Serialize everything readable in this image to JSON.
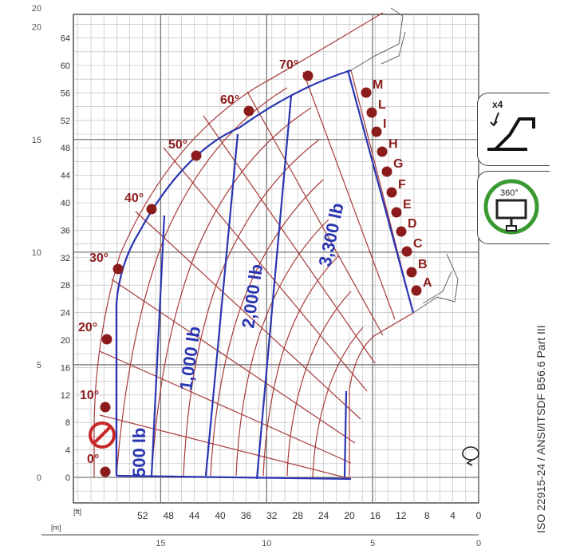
{
  "axes": {
    "ft_unit": "[ft]",
    "m_unit": "[m]",
    "y_ft": [
      "0",
      "4",
      "8",
      "12",
      "16",
      "20",
      "24",
      "28",
      "32",
      "36",
      "40",
      "44",
      "48",
      "52",
      "56",
      "60",
      "64"
    ],
    "y_m": [
      "0",
      "5",
      "10",
      "15",
      "20"
    ],
    "x_ft": [
      "52",
      "48",
      "44",
      "40",
      "36",
      "32",
      "28",
      "24",
      "20",
      "16",
      "12",
      "8",
      "4",
      "0"
    ],
    "x_m": [
      "15",
      "10",
      "5",
      "0"
    ]
  },
  "angles": [
    "0°",
    "10°",
    "20°",
    "30°",
    "40°",
    "50°",
    "60°",
    "70°"
  ],
  "extensions": [
    "A",
    "B",
    "C",
    "D",
    "E",
    "F",
    "G",
    "H",
    "I",
    "L",
    "M"
  ],
  "loads": [
    "500 lb",
    "1,000 lb",
    "2,000 lb",
    "3,300 lb"
  ],
  "badges": {
    "outrigger_count": "x4",
    "rotation_label": "360°"
  },
  "standard": "ISO 22915-24  /  ANSI/ITSDF B56.6 Part III",
  "colors": {
    "zone_outline": "#a83a3a",
    "load_lines": "#2a35b0",
    "dots": "#8c1c1c",
    "grid": "#8a8a8a",
    "badge_ring": "#3a9a32"
  }
}
